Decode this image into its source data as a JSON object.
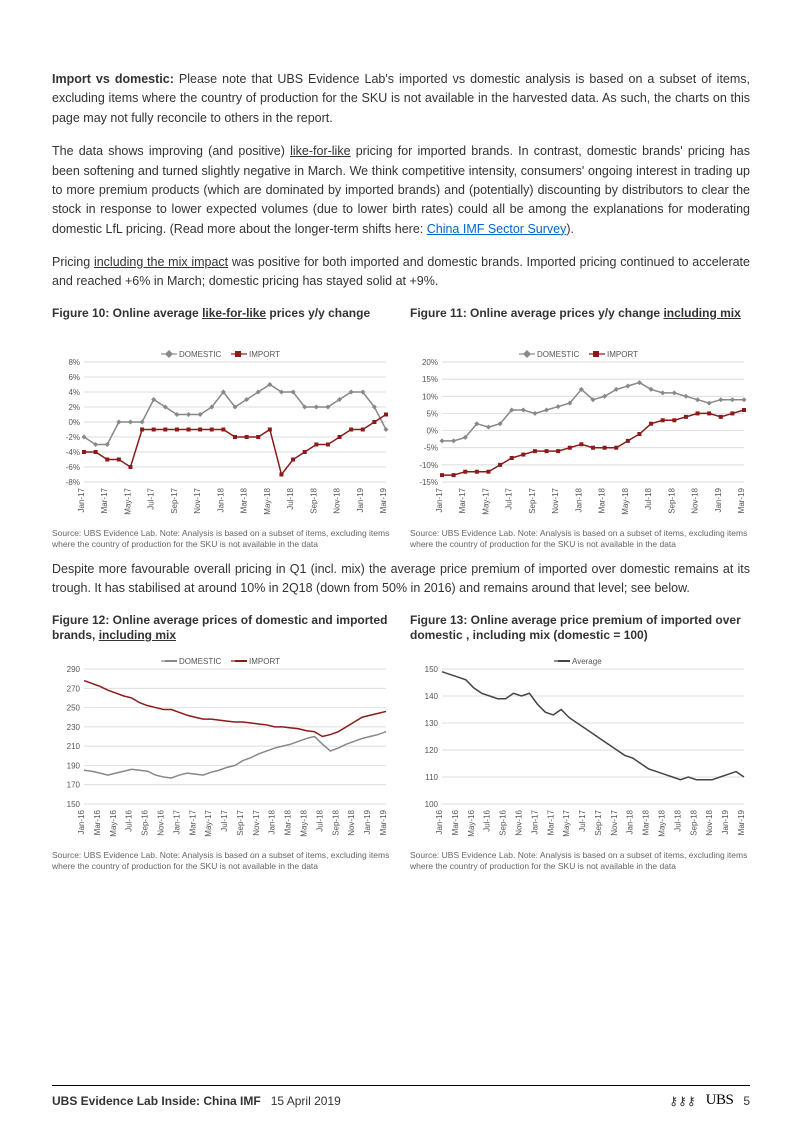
{
  "paragraphs": {
    "p1_bold": "Import vs domestic:",
    "p1_rest": " Please note that UBS Evidence Lab's imported vs domestic analysis is based on a subset of items, excluding items where the country of production for the SKU is not available in the harvested data. As such, the charts on this page may not fully reconcile to others in the report.",
    "p2a": "The data shows improving (and positive) ",
    "p2_u": "like-for-like",
    "p2b": " pricing for imported brands. In contrast, domestic brands' pricing has been softening and turned slightly negative in March. We think competitive intensity, consumers' ongoing interest in trading up to more premium products (which are dominated by imported brands) and (potentially) discounting by distributors to clear the stock in response to lower expected volumes (due to lower birth rates) could all be among the explanations for moderating domestic LfL pricing. (Read more about the longer-term shifts here: ",
    "p2_link": "China IMF Sector Survey",
    "p2c": ").",
    "p3a": "Pricing ",
    "p3_u": "including the mix impact",
    "p3b": " was positive for both imported and domestic brands. Imported pricing continued to accelerate and reached +6% in March; domestic pricing has stayed solid at +9%.",
    "p4": "Despite more favourable overall pricing in Q1 (incl. mix) the average price premium of imported over domestic remains at its trough. It has stabilised at around 10% in 2Q18 (down from 50% in 2016) and remains around that level; see below."
  },
  "common": {
    "legend_domestic": "DOMESTIC",
    "legend_import": "IMPORT",
    "legend_average": "Average",
    "source_text": "Source:  UBS Evidence Lab. Note: Analysis is based on a subset of items, excluding items where the country of production for the SKU is not available in the data",
    "colors": {
      "domestic": "#888888",
      "import": "#8b1a1a",
      "average": "#444444",
      "grid": "#d0d0d0",
      "text": "#555555",
      "bg": "#ffffff"
    }
  },
  "fig10": {
    "title_a": "Figure 10: Online average ",
    "title_u": "like-for-like",
    "title_b": " prices y/y change",
    "ylim": [
      -8,
      8
    ],
    "ytick_step": 2,
    "x_labels": [
      "Jan-17",
      "Mar-17",
      "May-17",
      "Jul-17",
      "Sep-17",
      "Nov-17",
      "Jan-18",
      "Mar-18",
      "May-18",
      "Jul-18",
      "Sep-18",
      "Nov-18",
      "Jan-19",
      "Mar-19"
    ],
    "domestic": [
      -2,
      -3,
      -3,
      0,
      0,
      0,
      3,
      2,
      1,
      1,
      1,
      2,
      4,
      2,
      3,
      4,
      5,
      4,
      4,
      2,
      2,
      2,
      3,
      4,
      4,
      2,
      -1
    ],
    "import": [
      -4,
      -4,
      -5,
      -5,
      -6,
      -1,
      -1,
      -1,
      -1,
      -1,
      -1,
      -1,
      -1,
      -2,
      -2,
      -2,
      -1,
      -7,
      -5,
      -4,
      -3,
      -3,
      -2,
      -1,
      -1,
      0,
      1
    ]
  },
  "fig11": {
    "title_a": "Figure 11: Online average prices y/y change ",
    "title_u": "including mix",
    "ylim": [
      -15,
      20
    ],
    "ytick_step": 5,
    "x_labels": [
      "Jan-17",
      "Mar-17",
      "May-17",
      "Jul-17",
      "Sep-17",
      "Nov-17",
      "Jan-18",
      "Mar-18",
      "May-18",
      "Jul-18",
      "Sep-18",
      "Nov-18",
      "Jan-19",
      "Mar-19"
    ],
    "domestic": [
      -3,
      -3,
      -2,
      2,
      1,
      2,
      6,
      6,
      5,
      6,
      7,
      8,
      12,
      9,
      10,
      12,
      13,
      14,
      12,
      11,
      11,
      10,
      9,
      8,
      9,
      9,
      9
    ],
    "import": [
      -13,
      -13,
      -12,
      -12,
      -12,
      -10,
      -8,
      -7,
      -6,
      -6,
      -6,
      -5,
      -4,
      -5,
      -5,
      -5,
      -3,
      -1,
      2,
      3,
      3,
      4,
      5,
      5,
      4,
      5,
      6
    ]
  },
  "fig12": {
    "title_a": "Figure 12: Online average prices of domestic and imported brands, ",
    "title_u": "including mix",
    "ylim": [
      150,
      290
    ],
    "ytick_step": 20,
    "x_labels": [
      "Jan-16",
      "Mar-16",
      "May-16",
      "Jul-16",
      "Sep-16",
      "Nov-16",
      "Jan-17",
      "Mar-17",
      "May-17",
      "Jul-17",
      "Sep-17",
      "Nov-17",
      "Jan-18",
      "Mar-18",
      "May-18",
      "Jul-18",
      "Sep-18",
      "Nov-18",
      "Jan-19",
      "Mar-19"
    ],
    "domestic": [
      185,
      184,
      182,
      180,
      182,
      184,
      186,
      185,
      184,
      180,
      178,
      177,
      180,
      182,
      181,
      180,
      183,
      185,
      188,
      190,
      195,
      198,
      202,
      205,
      208,
      210,
      212,
      215,
      218,
      220,
      212,
      205,
      208,
      212,
      215,
      218,
      220,
      222,
      225
    ],
    "import": [
      278,
      275,
      272,
      268,
      265,
      262,
      260,
      255,
      252,
      250,
      248,
      248,
      245,
      242,
      240,
      238,
      238,
      237,
      236,
      235,
      235,
      234,
      233,
      232,
      230,
      230,
      229,
      228,
      226,
      225,
      220,
      222,
      225,
      230,
      235,
      240,
      242,
      244,
      246
    ]
  },
  "fig13": {
    "title": "Figure 13: Online average price premium of imported over domestic , including mix (domestic = 100)",
    "ylim": [
      100,
      150
    ],
    "ytick_step": 10,
    "x_labels": [
      "Jan-16",
      "Mar-16",
      "May-16",
      "Jul-16",
      "Sep-16",
      "Nov-16",
      "Jan-17",
      "Mar-17",
      "May-17",
      "Jul-17",
      "Sep-17",
      "Nov-17",
      "Jan-18",
      "Mar-18",
      "May-18",
      "Jul-18",
      "Sep-18",
      "Nov-18",
      "Jan-19",
      "Mar-19"
    ],
    "average": [
      149,
      148,
      147,
      146,
      143,
      141,
      140,
      139,
      139,
      141,
      140,
      141,
      137,
      134,
      133,
      135,
      132,
      130,
      128,
      126,
      124,
      122,
      120,
      118,
      117,
      115,
      113,
      112,
      111,
      110,
      109,
      110,
      109,
      109,
      109,
      110,
      111,
      112,
      110
    ]
  },
  "footer": {
    "title": "UBS Evidence Lab Inside: China IMF",
    "date": "15 April 2019",
    "brand": "UBS",
    "page": "5"
  }
}
